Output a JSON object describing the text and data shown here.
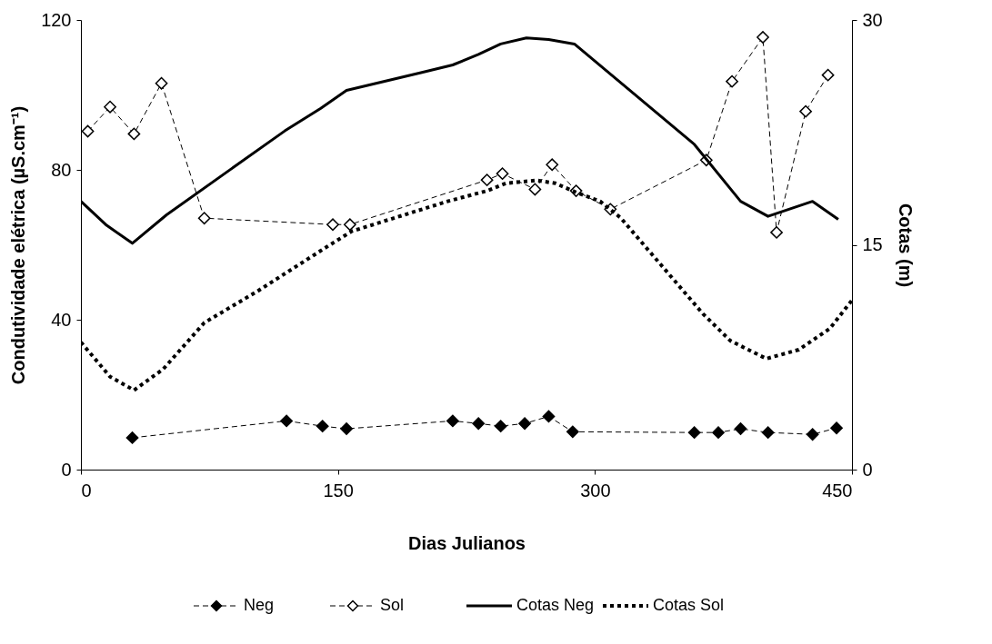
{
  "chart_data": {
    "type": "line",
    "xlabel": "Dias Julianos",
    "ylabel": "Condutividade elétrica (µS.cm⁻¹)",
    "y2label": "Cotas (m)",
    "xlim": [
      0,
      450
    ],
    "xticks": [
      0,
      150,
      300,
      450
    ],
    "ylim": [
      0,
      120
    ],
    "yticks": [
      0,
      40,
      80,
      120
    ],
    "y2lim": [
      0,
      30
    ],
    "y2ticks": [
      0,
      15,
      30
    ],
    "grid": false,
    "legend": "bottom",
    "series": [
      {
        "name": "Neg",
        "color": "#000000",
        "marker": "diamond",
        "line_style": "dashed",
        "x": [
          30,
          120,
          141,
          155,
          217,
          232,
          245,
          259,
          273,
          287,
          358,
          372,
          385,
          401,
          427,
          441
        ],
        "values": [
          8.5,
          13.0,
          11.6,
          10.9,
          13.0,
          12.3,
          11.6,
          12.3,
          14.2,
          10.1,
          9.9,
          9.9,
          10.9,
          9.9,
          9.4,
          11.1
        ]
      },
      {
        "name": "Sol",
        "color": "#000000",
        "marker": "diamond_open",
        "line_style": "dashed",
        "x": [
          4,
          17,
          31,
          47,
          72,
          147,
          157,
          237,
          246,
          265,
          275,
          289,
          309,
          365,
          380,
          398,
          406,
          423,
          436
        ],
        "values": [
          90.3,
          96.8,
          89.6,
          103.1,
          67.1,
          65.4,
          65.4,
          77.3,
          79.0,
          74.8,
          81.4,
          74.4,
          69.5,
          82.6,
          103.6,
          115.4,
          63.3,
          95.6,
          105.3
        ]
      },
      {
        "name": "Cotas Neg",
        "color": "#000000",
        "marker": "none",
        "line_style": "solid",
        "axis": "y2",
        "x": [
          0,
          15,
          30,
          50,
          119,
          140,
          155,
          199,
          217,
          232,
          245,
          260,
          273,
          288,
          358,
          385,
          401,
          427,
          442
        ],
        "values": [
          17.9,
          16.3,
          15.1,
          17.0,
          22.6,
          24.1,
          25.3,
          26.5,
          27.0,
          27.7,
          28.4,
          28.8,
          28.7,
          28.4,
          21.7,
          17.9,
          16.9,
          17.9,
          16.7
        ]
      },
      {
        "name": "Cotas Sol",
        "color": "#000000",
        "marker": "none",
        "line_style": "dotted",
        "axis": "y2",
        "x": [
          0,
          17,
          31,
          48,
          72,
          103,
          144,
          158,
          214,
          237,
          248,
          266,
          277,
          289,
          303,
          315,
          363,
          379,
          400,
          419,
          437,
          450
        ],
        "values": [
          8.5,
          6.2,
          5.3,
          6.7,
          9.8,
          11.9,
          14.9,
          15.9,
          17.9,
          18.6,
          19.1,
          19.3,
          19.1,
          18.5,
          17.9,
          16.8,
          10.4,
          8.6,
          7.4,
          8.0,
          9.4,
          11.3
        ]
      }
    ]
  }
}
